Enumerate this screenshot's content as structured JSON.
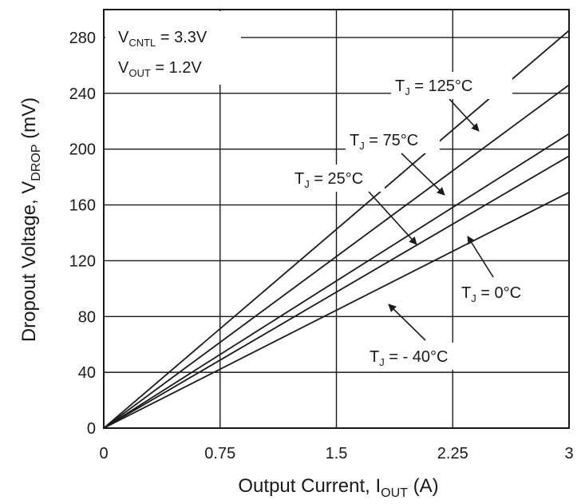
{
  "chart_data": {
    "type": "line",
    "xlabel": {
      "main": "Output Current, I",
      "sub": "OUT",
      "tail": " (A)"
    },
    "ylabel": {
      "main": "Dropout Voltage, V",
      "sub": "DROP",
      "tail": " (mV)"
    },
    "xlim": [
      0,
      3
    ],
    "ylim": [
      0,
      300
    ],
    "xticks": [
      0,
      0.75,
      1.5,
      2.25,
      3
    ],
    "xtick_labels": [
      "0",
      "0.75",
      "1.5",
      "2.25",
      "3"
    ],
    "yticks": [
      0,
      40,
      80,
      120,
      160,
      200,
      240,
      280
    ],
    "ytick_labels": [
      "0",
      "40",
      "80",
      "120",
      "160",
      "200",
      "240",
      "280"
    ],
    "grid": true,
    "conditions": [
      {
        "main": "V",
        "sub": "CNTL",
        "tail": " = 3.3V"
      },
      {
        "main": "V",
        "sub": "OUT",
        "tail": " = 1.2V"
      }
    ],
    "series": [
      {
        "name": "TJ = 125°C",
        "x": [
          0,
          3
        ],
        "y": [
          0,
          285
        ]
      },
      {
        "name": "TJ = 75°C",
        "x": [
          0,
          3
        ],
        "y": [
          0,
          246
        ]
      },
      {
        "name": "TJ = 25°C",
        "x": [
          0,
          3
        ],
        "y": [
          0,
          211
        ]
      },
      {
        "name": "TJ = 0°C",
        "x": [
          0,
          3
        ],
        "y": [
          0,
          195
        ]
      },
      {
        "name": "TJ = -40°C",
        "x": [
          0,
          3
        ],
        "y": [
          0,
          169
        ]
      }
    ],
    "annotations": [
      {
        "main": "T",
        "sub": "J",
        "tail": " = 125°C"
      },
      {
        "main": "T",
        "sub": "J",
        "tail": " = 75°C"
      },
      {
        "main": "T",
        "sub": "J",
        "tail": " = 25°C"
      },
      {
        "main": "T",
        "sub": "J",
        "tail": " = 0°C"
      },
      {
        "main": "T",
        "sub": "J",
        "tail": " = - 40°C"
      }
    ]
  }
}
